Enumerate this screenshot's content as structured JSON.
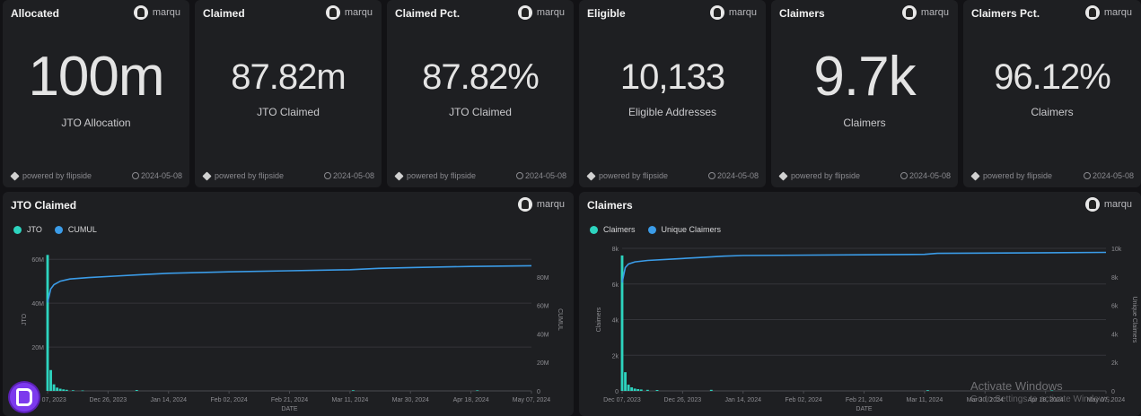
{
  "stat_cards": [
    {
      "title": "Allocated",
      "author": "marqu",
      "value": "100m",
      "label": "JTO Allocation",
      "powered": "powered by flipside",
      "date": "2024-05-08",
      "size": "big"
    },
    {
      "title": "Claimed",
      "author": "marqu",
      "value": "87.82m",
      "label": "JTO Claimed",
      "powered": "powered by flipside",
      "date": "2024-05-08",
      "size": "mid"
    },
    {
      "title": "Claimed Pct.",
      "author": "marqu",
      "value": "87.82%",
      "label": "JTO Claimed",
      "powered": "powered by flipside",
      "date": "2024-05-08",
      "size": "mid"
    },
    {
      "title": "Eligible",
      "author": "marqu",
      "value": "10,133",
      "label": "Eligible Addresses",
      "powered": "powered by flipside",
      "date": "2024-05-08",
      "size": "mid"
    },
    {
      "title": "Claimers",
      "author": "marqu",
      "value": "9.7k",
      "label": "Claimers",
      "powered": "powered by flipside",
      "date": "2024-05-08",
      "size": "big"
    },
    {
      "title": "Claimers Pct.",
      "author": "marqu",
      "value": "96.12%",
      "label": "Claimers",
      "powered": "powered by flipside",
      "date": "2024-05-08",
      "size": "mid"
    }
  ],
  "colors": {
    "bar": "#2dd4bf",
    "line": "#3b9ce8",
    "grid": "#34353a",
    "axis": "#8d8d92"
  },
  "chart_data": [
    {
      "type": "bar",
      "title": "JTO Claimed",
      "author": "marqu",
      "xlabel": "DATE",
      "ylabel": "JTO",
      "y2label": "CUMUL",
      "ylim": [
        0,
        65000000
      ],
      "y2lim": [
        0,
        100000000
      ],
      "yticks": [
        {
          "v": 20000000,
          "t": "20M"
        },
        {
          "v": 40000000,
          "t": "40M"
        },
        {
          "v": 60000000,
          "t": "60M"
        }
      ],
      "y2ticks": [
        {
          "v": 0,
          "t": "0"
        },
        {
          "v": 20000000,
          "t": "20M"
        },
        {
          "v": 40000000,
          "t": "40M"
        },
        {
          "v": 60000000,
          "t": "60M"
        },
        {
          "v": 80000000,
          "t": "80M"
        }
      ],
      "x_start": "2023-12-07",
      "x_end": "2024-05-07",
      "xticks": [
        {
          "d": "2023-12-07",
          "t": "Dec 07, 2023"
        },
        {
          "d": "2023-12-26",
          "t": "Dec 26, 2023"
        },
        {
          "d": "2024-01-14",
          "t": "Jan 14, 2024"
        },
        {
          "d": "2024-02-02",
          "t": "Feb 02, 2024"
        },
        {
          "d": "2024-02-21",
          "t": "Feb 21, 2024"
        },
        {
          "d": "2024-03-11",
          "t": "Mar 11, 2024"
        },
        {
          "d": "2024-03-30",
          "t": "Mar 30, 2024"
        },
        {
          "d": "2024-04-18",
          "t": "Apr 18, 2024"
        },
        {
          "d": "2024-05-07",
          "t": "May 07, 2024"
        }
      ],
      "series": [
        {
          "name": "JTO",
          "kind": "bar",
          "points": [
            [
              "2023-12-07",
              62000000
            ],
            [
              "2023-12-08",
              9500000
            ],
            [
              "2023-12-09",
              3000000
            ],
            [
              "2023-12-10",
              1500000
            ],
            [
              "2023-12-11",
              1000000
            ],
            [
              "2023-12-12",
              700000
            ],
            [
              "2023-12-13",
              500000
            ],
            [
              "2023-12-15",
              300000
            ],
            [
              "2023-12-18",
              200000
            ],
            [
              "2024-01-04",
              400000
            ],
            [
              "2024-03-12",
              300000
            ],
            [
              "2024-04-20",
              250000
            ]
          ]
        },
        {
          "name": "CUMUL",
          "kind": "line",
          "axis": "right",
          "points": [
            [
              "2023-12-07",
              62000000
            ],
            [
              "2023-12-08",
              71500000
            ],
            [
              "2023-12-09",
              74500000
            ],
            [
              "2023-12-11",
              77000000
            ],
            [
              "2023-12-14",
              78500000
            ],
            [
              "2023-12-20",
              79500000
            ],
            [
              "2023-12-28",
              80500000
            ],
            [
              "2024-01-05",
              81500000
            ],
            [
              "2024-01-14",
              82500000
            ],
            [
              "2024-02-02",
              83500000
            ],
            [
              "2024-02-21",
              84300000
            ],
            [
              "2024-03-11",
              85000000
            ],
            [
              "2024-03-20",
              86000000
            ],
            [
              "2024-04-01",
              86600000
            ],
            [
              "2024-04-18",
              87300000
            ],
            [
              "2024-05-07",
              87820000
            ]
          ]
        }
      ]
    },
    {
      "type": "bar",
      "title": "Claimers",
      "author": "marqu",
      "xlabel": "DATE",
      "ylabel": "Claimers",
      "y2label": "Unique Claimers",
      "ylim": [
        0,
        8000
      ],
      "y2lim": [
        0,
        10000
      ],
      "yticks": [
        {
          "v": 0,
          "t": "0"
        },
        {
          "v": 2000,
          "t": "2k"
        },
        {
          "v": 4000,
          "t": "4k"
        },
        {
          "v": 6000,
          "t": "6k"
        },
        {
          "v": 8000,
          "t": "8k"
        }
      ],
      "y2ticks": [
        {
          "v": 0,
          "t": "0"
        },
        {
          "v": 2000,
          "t": "2k"
        },
        {
          "v": 4000,
          "t": "4k"
        },
        {
          "v": 6000,
          "t": "6k"
        },
        {
          "v": 8000,
          "t": "8k"
        },
        {
          "v": 10000,
          "t": "10k"
        }
      ],
      "x_start": "2023-12-07",
      "x_end": "2024-05-07",
      "xticks": [
        {
          "d": "2023-12-07",
          "t": "Dec 07, 2023"
        },
        {
          "d": "2023-12-26",
          "t": "Dec 26, 2023"
        },
        {
          "d": "2024-01-14",
          "t": "Jan 14, 2024"
        },
        {
          "d": "2024-02-02",
          "t": "Feb 02, 2024"
        },
        {
          "d": "2024-02-21",
          "t": "Feb 21, 2024"
        },
        {
          "d": "2024-03-11",
          "t": "Mar 11, 2024"
        },
        {
          "d": "2024-03-30",
          "t": "Mar 30, 2024"
        },
        {
          "d": "2024-04-18",
          "t": "Apr 18, 2024"
        },
        {
          "d": "2024-05-07",
          "t": "May 07, 2024"
        }
      ],
      "series": [
        {
          "name": "Claimers",
          "kind": "bar",
          "points": [
            [
              "2023-12-07",
              7600
            ],
            [
              "2023-12-08",
              1050
            ],
            [
              "2023-12-09",
              350
            ],
            [
              "2023-12-10",
              200
            ],
            [
              "2023-12-11",
              130
            ],
            [
              "2023-12-12",
              100
            ],
            [
              "2023-12-13",
              80
            ],
            [
              "2023-12-15",
              60
            ],
            [
              "2023-12-18",
              50
            ],
            [
              "2024-01-04",
              60
            ],
            [
              "2024-03-12",
              40
            ],
            [
              "2024-04-20",
              30
            ]
          ]
        },
        {
          "name": "Unique Claimers",
          "kind": "line",
          "axis": "right",
          "points": [
            [
              "2023-12-07",
              7600
            ],
            [
              "2023-12-08",
              8650
            ],
            [
              "2023-12-09",
              8900
            ],
            [
              "2023-12-11",
              9050
            ],
            [
              "2023-12-15",
              9150
            ],
            [
              "2023-12-23",
              9250
            ],
            [
              "2023-12-31",
              9350
            ],
            [
              "2024-01-08",
              9450
            ],
            [
              "2024-01-14",
              9500
            ],
            [
              "2024-02-21",
              9550
            ],
            [
              "2024-03-11",
              9580
            ],
            [
              "2024-03-15",
              9650
            ],
            [
              "2024-04-18",
              9690
            ],
            [
              "2024-05-07",
              9720
            ]
          ]
        }
      ]
    }
  ],
  "watermark": {
    "line1": "Activate Windows",
    "line2": "Go to Settings to activate Windows."
  }
}
